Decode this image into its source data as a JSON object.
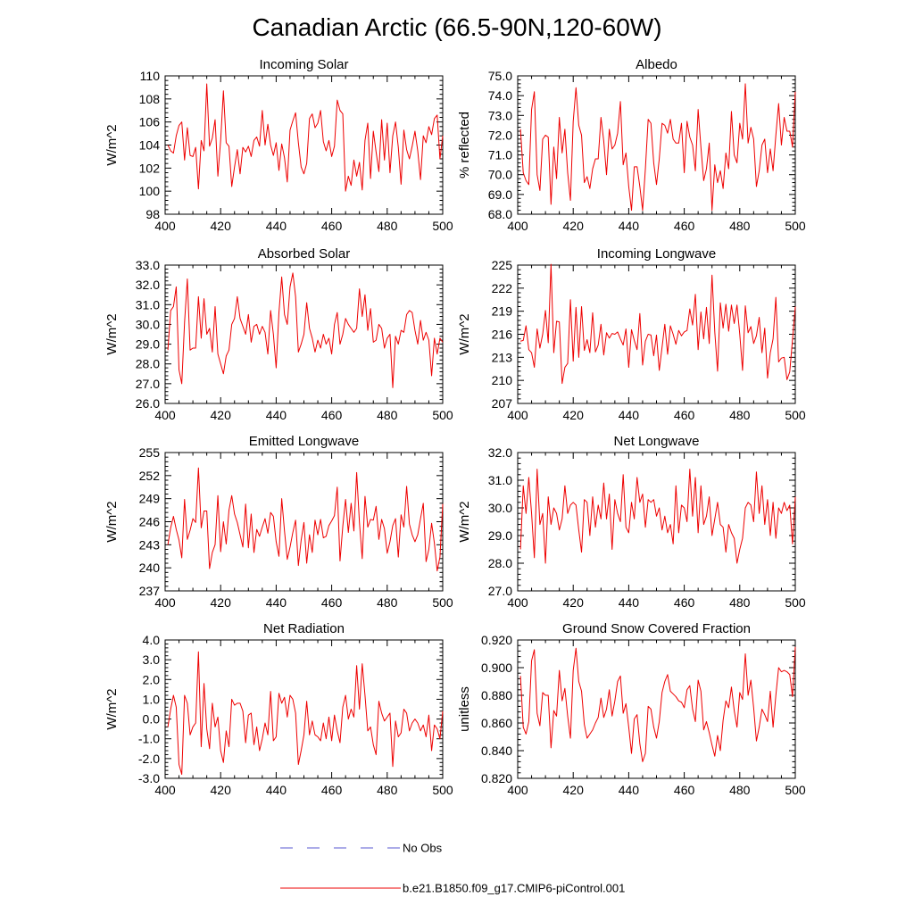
{
  "figure_title": "Canadian Arctic (66.5-90N,120-60W)",
  "series_color": "#ee0000",
  "obs_color": "#5a5ad0",
  "legend": {
    "obs_label": "No Obs",
    "model_label": "b.e21.B1850.f09_g17.CMIP6-piControl.001"
  },
  "chart_data": [
    {
      "type": "line",
      "title": "Incoming Solar",
      "ylabel": "W/m^2",
      "xlim": [
        400,
        500
      ],
      "ylim": [
        98,
        110
      ],
      "x_ticks": [
        400,
        420,
        440,
        460,
        480,
        500
      ],
      "y_ticks": [
        98,
        100,
        102,
        104,
        106,
        108,
        110
      ],
      "y_tick_labels": [
        "98",
        "100",
        "102",
        "104",
        "106",
        "108",
        "110"
      ],
      "x_start": 401,
      "values": [
        104.0,
        103.5,
        103.3,
        104.8,
        105.7,
        106.0,
        102.7,
        105.5,
        103.1,
        103.0,
        103.8,
        100.2,
        104.4,
        103.5,
        109.3,
        103.9,
        104.6,
        106.2,
        101.3,
        104.4,
        108.7,
        104.2,
        103.9,
        100.4,
        102.1,
        103.6,
        101.5,
        103.8,
        103.4,
        103.9,
        103.0,
        104.4,
        104.7,
        103.9,
        107.0,
        104.0,
        105.8,
        104.0,
        103.1,
        104.2,
        101.8,
        104.1,
        102.9,
        100.8,
        105.3,
        106.1,
        106.8,
        104.2,
        102.1,
        101.5,
        102.4,
        106.3,
        106.7,
        105.5,
        105.9,
        107.0,
        104.3,
        103.5,
        104.4,
        103.0,
        103.9,
        107.9,
        107.0,
        106.7,
        100.0,
        101.3,
        100.5,
        102.7,
        101.3,
        102.5,
        100.1,
        104.4,
        105.9,
        101.1,
        105.2,
        103.4,
        101.7,
        106.2,
        102.7,
        105.9,
        101.6,
        104.8,
        106.0,
        103.8,
        100.6,
        105.3,
        103.6,
        102.8,
        103.9,
        105.2,
        103.5,
        101.0,
        104.8,
        104.2,
        105.6,
        104.9,
        106.3,
        106.6,
        102.8,
        104.8
      ]
    },
    {
      "type": "line",
      "title": "Albedo",
      "ylabel": "% reflected",
      "xlim": [
        400,
        500
      ],
      "ylim": [
        68,
        75
      ],
      "x_ticks": [
        400,
        420,
        440,
        460,
        480,
        500
      ],
      "y_ticks": [
        68,
        69,
        70,
        71,
        72,
        73,
        74,
        75
      ],
      "y_tick_labels": [
        "68.0",
        "69.0",
        "70.0",
        "71.0",
        "72.0",
        "73.0",
        "74.0",
        "75.0"
      ],
      "x_start": 401,
      "values": [
        72.3,
        70.1,
        69.7,
        69.5,
        73.3,
        74.2,
        70.0,
        69.2,
        71.8,
        72.0,
        71.9,
        68.5,
        71.4,
        69.8,
        72.9,
        71.1,
        72.3,
        70.1,
        68.7,
        72.7,
        74.4,
        72.5,
        72.0,
        69.6,
        69.9,
        69.3,
        70.3,
        70.8,
        70.8,
        72.9,
        71.7,
        70.0,
        72.3,
        71.3,
        71.5,
        72.1,
        73.7,
        70.5,
        71.1,
        69.4,
        68.2,
        70.4,
        70.4,
        69.4,
        68.2,
        70.3,
        72.8,
        72.6,
        70.6,
        69.5,
        70.8,
        72.6,
        72.5,
        72.1,
        72.8,
        71.8,
        71.6,
        71.6,
        72.6,
        70.1,
        72.7,
        71.9,
        71.5,
        70.2,
        73.3,
        71.4,
        69.7,
        70.3,
        71.6,
        68.2,
        70.5,
        69.6,
        70.2,
        69.3,
        71.1,
        70.3,
        73.2,
        71.0,
        70.6,
        72.6,
        71.8,
        74.6,
        71.6,
        72.4,
        71.8,
        69.4,
        70.2,
        71.5,
        71.8,
        70.1,
        71.3,
        70.2,
        72.0,
        73.6,
        71.5,
        72.9,
        72.2,
        72.2,
        71.4,
        74.2
      ]
    },
    {
      "type": "line",
      "title": "Absorbed Solar",
      "ylabel": "W/m^2",
      "xlim": [
        400,
        500
      ],
      "ylim": [
        26,
        33
      ],
      "x_ticks": [
        400,
        420,
        440,
        460,
        480,
        500
      ],
      "y_ticks": [
        26,
        27,
        28,
        29,
        30,
        31,
        32,
        33
      ],
      "y_tick_labels": [
        "26.0",
        "27.0",
        "28.0",
        "29.0",
        "30.0",
        "31.0",
        "32.0",
        "33.0"
      ],
      "x_start": 401,
      "values": [
        28.7,
        30.7,
        30.9,
        31.9,
        27.7,
        27.0,
        30.1,
        32.3,
        28.7,
        28.8,
        28.8,
        31.4,
        29.3,
        31.3,
        29.5,
        29.8,
        28.6,
        30.9,
        28.5,
        28.0,
        27.5,
        28.4,
        28.7,
        30.0,
        30.3,
        31.4,
        30.3,
        29.9,
        29.5,
        30.5,
        29.1,
        29.9,
        30.0,
        29.5,
        29.9,
        29.6,
        28.5,
        30.7,
        29.5,
        27.8,
        30.6,
        32.4,
        30.5,
        30.0,
        31.9,
        32.6,
        31.4,
        28.6,
        29.0,
        29.5,
        31.1,
        29.8,
        29.3,
        28.6,
        29.2,
        28.8,
        29.5,
        29.0,
        29.3,
        28.5,
        30.0,
        30.6,
        29.0,
        29.5,
        30.3,
        30.0,
        29.8,
        29.6,
        29.8,
        31.8,
        30.4,
        31.5,
        29.7,
        30.8,
        29.1,
        29.2,
        30.0,
        29.8,
        28.8,
        29.3,
        29.5,
        26.8,
        29.4,
        29.0,
        29.7,
        29.6,
        30.5,
        30.7,
        30.6,
        29.7,
        29.0,
        30.2,
        29.2,
        29.6,
        29.2,
        27.4,
        29.3,
        28.5,
        29.3,
        29.1
      ]
    },
    {
      "type": "line",
      "title": "Incoming Longwave",
      "ylabel": "W/m^2",
      "xlim": [
        400,
        500
      ],
      "ylim": [
        207,
        225
      ],
      "x_ticks": [
        400,
        420,
        440,
        460,
        480,
        500
      ],
      "y_ticks": [
        207,
        210,
        213,
        216,
        219,
        222,
        225
      ],
      "y_tick_labels": [
        "207",
        "210",
        "213",
        "216",
        "219",
        "222",
        "225"
      ],
      "x_start": 401,
      "values": [
        215.1,
        215.2,
        217.1,
        214.0,
        213.6,
        211.7,
        216.7,
        214.2,
        216.0,
        219.1,
        214.9,
        225.1,
        213.6,
        217.7,
        217.6,
        209.6,
        211.7,
        212.2,
        220.5,
        212.5,
        219.5,
        213.0,
        219.6,
        213.9,
        215.3,
        213.6,
        218.8,
        213.7,
        214.6,
        217.3,
        213.3,
        216.2,
        215.5,
        216.1,
        216.0,
        216.3,
        215.4,
        214.6,
        216.7,
        211.7,
        216.6,
        215.2,
        214.0,
        218.7,
        212.0,
        215.1,
        216.0,
        215.9,
        213.2,
        215.9,
        211.3,
        214.3,
        217.3,
        213.4,
        217.1,
        216.0,
        214.7,
        216.5,
        215.8,
        216.3,
        216.5,
        219.3,
        217.2,
        221.2,
        214.0,
        218.9,
        215.4,
        219.5,
        214.8,
        223.7,
        216.3,
        211.2,
        220.1,
        216.8,
        219.9,
        216.4,
        219.8,
        217.4,
        219.8,
        216.0,
        211.3,
        219.7,
        216.2,
        217.0,
        214.8,
        215.8,
        218.2,
        213.6,
        216.8,
        210.3,
        213.6,
        215.4,
        220.8,
        212.4,
        212.9,
        213.0,
        210.1,
        211.1,
        215.3,
        219.6
      ]
    },
    {
      "type": "line",
      "title": "Emitted Longwave",
      "ylabel": "W/m^2",
      "xlim": [
        400,
        500
      ],
      "ylim": [
        237,
        255
      ],
      "x_ticks": [
        400,
        420,
        440,
        460,
        480,
        500
      ],
      "y_ticks": [
        237,
        240,
        243,
        246,
        249,
        252,
        255
      ],
      "y_tick_labels": [
        "237",
        "240",
        "243",
        "246",
        "249",
        "252",
        "255"
      ],
      "x_start": 401,
      "values": [
        243.0,
        245.2,
        246.7,
        245.0,
        243.6,
        241.3,
        248.9,
        243.7,
        244.9,
        246.4,
        245.9,
        253.0,
        245.2,
        247.4,
        247.4,
        239.9,
        242.0,
        243.0,
        249.4,
        242.1,
        246.0,
        243.1,
        247.5,
        249.4,
        247.0,
        245.9,
        244.3,
        242.7,
        248.3,
        242.6,
        247.0,
        242.0,
        245.0,
        244.1,
        245.3,
        246.4,
        244.5,
        247.2,
        246.7,
        243.4,
        241.5,
        249.0,
        244.8,
        241.1,
        242.7,
        244.6,
        246.2,
        240.3,
        243.6,
        245.9,
        240.6,
        244.3,
        242.0,
        246.2,
        244.3,
        246.3,
        243.9,
        244.1,
        245.5,
        246.1,
        246.8,
        250.5,
        240.9,
        245.4,
        248.9,
        244.6,
        248.4,
        244.8,
        252.4,
        245.9,
        241.2,
        249.3,
        245.3,
        246.3,
        246.2,
        248.0,
        243.7,
        246.3,
        245.1,
        241.9,
        243.4,
        245.5,
        246.4,
        241.4,
        246.9,
        245.3,
        250.6,
        245.7,
        244.3,
        243.4,
        244.3,
        246.4,
        248.4,
        240.8,
        242.4,
        245.8,
        243.2,
        239.6,
        241.4,
        248.3
      ]
    },
    {
      "type": "line",
      "title": "Net Longwave",
      "ylabel": "W/m^2",
      "xlim": [
        400,
        500
      ],
      "ylim": [
        27,
        32
      ],
      "x_ticks": [
        400,
        420,
        440,
        460,
        480,
        500
      ],
      "y_ticks": [
        27,
        28,
        29,
        30,
        31,
        32
      ],
      "y_tick_labels": [
        "27.0",
        "28.0",
        "29.0",
        "30.0",
        "31.0",
        "32.0"
      ],
      "x_start": 401,
      "values": [
        28.5,
        30.8,
        29.8,
        31.1,
        29.8,
        28.2,
        31.4,
        29.4,
        29.8,
        28.0,
        30.4,
        29.4,
        30.0,
        29.8,
        29.2,
        29.6,
        30.8,
        29.8,
        30.1,
        30.2,
        30.1,
        29.2,
        28.4,
        30.3,
        30.2,
        29.0,
        30.4,
        29.3,
        30.1,
        29.6,
        30.9,
        29.6,
        30.5,
        28.5,
        30.3,
        29.8,
        29.5,
        31.2,
        29.3,
        29.1,
        30.2,
        29.6,
        31.1,
        30.2,
        30.5,
        29.3,
        30.3,
        30.2,
        30.3,
        29.7,
        30.0,
        29.2,
        29.7,
        29.1,
        29.4,
        28.7,
        30.8,
        29.1,
        30.1,
        30.0,
        29.5,
        31.4,
        29.7,
        31.1,
        29.1,
        30.8,
        29.4,
        29.7,
        30.4,
        29.0,
        29.6,
        30.2,
        29.4,
        29.3,
        28.4,
        29.4,
        29.1,
        28.9,
        28.0,
        28.5,
        28.9,
        30.0,
        30.2,
        30.1,
        29.5,
        31.3,
        29.8,
        30.8,
        29.4,
        30.3,
        29.0,
        30.2,
        28.9,
        30.0,
        29.8,
        30.2,
        29.9,
        30.1,
        28.7,
        30.4
      ]
    },
    {
      "type": "line",
      "title": "Net Radiation",
      "ylabel": "W/m^2",
      "xlim": [
        400,
        500
      ],
      "ylim": [
        -3,
        4
      ],
      "x_ticks": [
        400,
        420,
        440,
        460,
        480,
        500
      ],
      "y_ticks": [
        -3,
        -2,
        -1,
        0,
        1,
        2,
        3,
        4
      ],
      "y_tick_labels": [
        "-3.0",
        "-2.0",
        "-1.0",
        "0.0",
        "1.0",
        "2.0",
        "3.0",
        "4.0"
      ],
      "x_start": 401,
      "values": [
        -0.4,
        0.5,
        1.2,
        0.6,
        -2.3,
        -2.8,
        1.2,
        0.8,
        -0.8,
        -0.4,
        -0.2,
        3.4,
        -1.4,
        1.8,
        -0.5,
        -1.5,
        0.8,
        -0.4,
        0.1,
        -1.6,
        -2.2,
        -0.6,
        -1.4,
        1.0,
        0.7,
        0.8,
        0.8,
        0.4,
        -1.2,
        0.2,
        0.3,
        -1.3,
        -0.4,
        -1.6,
        -1.0,
        -0.2,
        -0.8,
        1.4,
        -1.1,
        -0.9,
        1.3,
        0.8,
        1.1,
        0.1,
        1.2,
        1.0,
        0.3,
        -2.3,
        -1.6,
        -0.8,
        0.9,
        -0.8,
        -0.1,
        -0.8,
        -0.9,
        -1.1,
        -0.2,
        -1.0,
        0.1,
        -1.1,
        0.2,
        -0.6,
        -1.2,
        0.6,
        1.2,
        0.0,
        0.5,
        0.1,
        2.7,
        0.5,
        2.8,
        1.2,
        -0.6,
        -0.4,
        -1.3,
        -1.8,
        0.9,
        0.3,
        -0.1,
        0.1,
        0.3,
        -2.4,
        -0.1,
        -0.9,
        -0.7,
        0.5,
        0.3,
        -0.6,
        -0.2,
        0.0,
        -0.2,
        -0.6,
        -0.3,
        -0.9,
        0.2,
        -1.6,
        -0.3,
        -0.5,
        -1.0,
        0.4
      ]
    },
    {
      "type": "line",
      "title": "Ground Snow Covered Fraction",
      "ylabel": "unitless",
      "xlim": [
        400,
        500
      ],
      "ylim": [
        0.82,
        0.92
      ],
      "x_ticks": [
        400,
        420,
        440,
        460,
        480,
        500
      ],
      "y_ticks": [
        0.82,
        0.84,
        0.86,
        0.88,
        0.9,
        0.92
      ],
      "y_tick_labels": [
        "0.820",
        "0.840",
        "0.860",
        "0.880",
        "0.900",
        "0.920"
      ],
      "x_start": 401,
      "values": [
        0.894,
        0.857,
        0.852,
        0.861,
        0.905,
        0.913,
        0.867,
        0.858,
        0.882,
        0.88,
        0.88,
        0.842,
        0.869,
        0.865,
        0.898,
        0.876,
        0.885,
        0.865,
        0.849,
        0.898,
        0.914,
        0.89,
        0.883,
        0.859,
        0.849,
        0.852,
        0.855,
        0.86,
        0.864,
        0.878,
        0.864,
        0.87,
        0.884,
        0.865,
        0.876,
        0.89,
        0.894,
        0.867,
        0.874,
        0.857,
        0.838,
        0.863,
        0.866,
        0.845,
        0.832,
        0.838,
        0.872,
        0.87,
        0.857,
        0.849,
        0.861,
        0.882,
        0.89,
        0.895,
        0.883,
        0.881,
        0.879,
        0.876,
        0.875,
        0.871,
        0.884,
        0.887,
        0.87,
        0.861,
        0.891,
        0.883,
        0.855,
        0.861,
        0.853,
        0.844,
        0.836,
        0.851,
        0.84,
        0.862,
        0.876,
        0.871,
        0.886,
        0.869,
        0.857,
        0.882,
        0.877,
        0.91,
        0.88,
        0.891,
        0.871,
        0.847,
        0.857,
        0.87,
        0.866,
        0.861,
        0.883,
        0.857,
        0.88,
        0.9,
        0.897,
        0.898,
        0.897,
        0.895,
        0.879,
        0.915
      ]
    }
  ]
}
